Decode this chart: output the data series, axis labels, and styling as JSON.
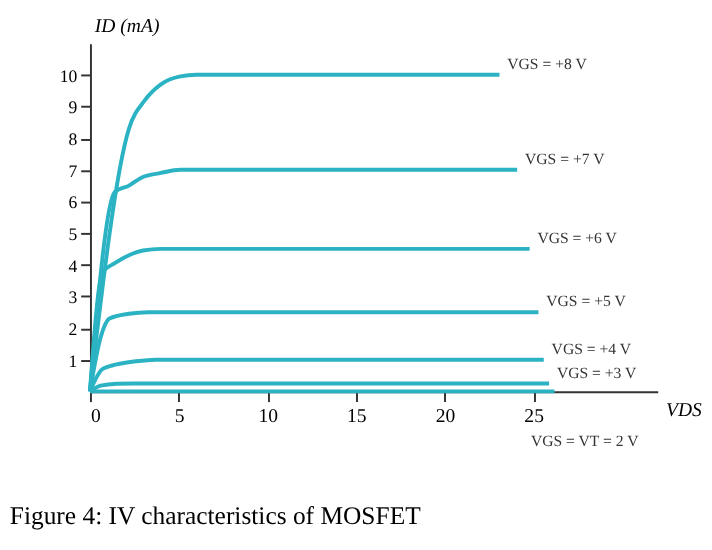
{
  "chart_data": {
    "type": "line",
    "title": "Figure 4: IV characteristics of MOSFET",
    "xlabel": "VDS",
    "ylabel": "ID (mA)",
    "xlim": [
      0,
      32
    ],
    "ylim": [
      0,
      11
    ],
    "xticks": [
      0,
      5,
      10,
      15,
      20,
      25
    ],
    "yticks": [
      1,
      2,
      3,
      4,
      5,
      6,
      7,
      8,
      9,
      10
    ],
    "grid": false,
    "marker": "none",
    "line_style": "solid",
    "series": [
      {
        "name": "VGS = +8 V",
        "color": "#2bb3c3",
        "x": [
          0,
          2.2,
          3.1,
          4.0,
          5.1,
          6.0,
          23.1
        ],
        "values": [
          0,
          8.3,
          9.2,
          9.7,
          9.95,
          10,
          10
        ]
      },
      {
        "name": "VGS = +7 V",
        "color": "#2bb3c3",
        "x": [
          0,
          1.4,
          2.2,
          2.9,
          4.0,
          5.1,
          24.1
        ],
        "values": [
          0,
          6.3,
          6.5,
          6.75,
          6.9,
          7,
          7
        ]
      },
      {
        "name": "VGS = +6 V",
        "color": "#2bb3c3",
        "x": [
          0,
          0.7,
          1.4,
          2.2,
          3.0,
          4.0,
          24.8
        ],
        "values": [
          0,
          3.75,
          4.05,
          4.3,
          4.45,
          4.5,
          4.5
        ]
      },
      {
        "name": "VGS = +5 V",
        "color": "#2bb3c3",
        "x": [
          0,
          0.6,
          1.1,
          2.2,
          3.3,
          25.3
        ],
        "values": [
          0,
          1.7,
          2.3,
          2.45,
          2.5,
          2.5
        ]
      },
      {
        "name": "VGS = +4 V",
        "color": "#2bb3c3",
        "x": [
          0,
          0.7,
          1.5,
          2.6,
          3.7,
          25.6
        ],
        "values": [
          0,
          0.7,
          0.85,
          0.95,
          1,
          1
        ]
      },
      {
        "name": "VGS = +3 V",
        "color": "#2bb3c3",
        "x": [
          0,
          0.6,
          1.5,
          2.5,
          25.9
        ],
        "values": [
          0,
          0.18,
          0.24,
          0.25,
          0.25
        ]
      },
      {
        "name": "VGS = VT = 2 V",
        "color": "#2bb3c3",
        "x": [
          0,
          26.2
        ],
        "values": [
          0,
          0
        ]
      }
    ]
  }
}
